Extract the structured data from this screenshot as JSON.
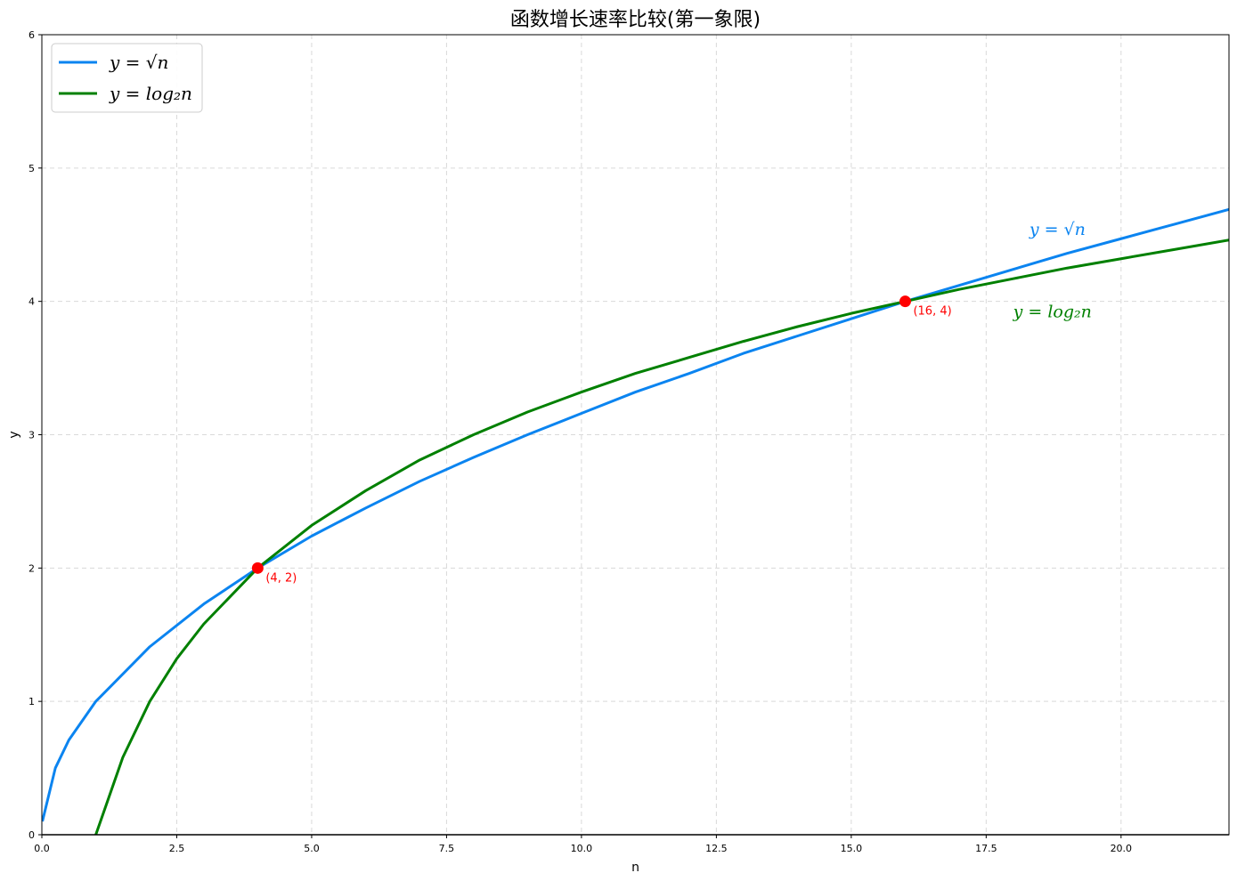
{
  "chart_data": {
    "type": "line",
    "title": "函数增长速率比较(第一象限)",
    "xlabel": "n",
    "ylabel": "y",
    "xlim": [
      0,
      22
    ],
    "ylim": [
      0,
      6
    ],
    "xticks": [
      0.0,
      2.5,
      5.0,
      7.5,
      10.0,
      12.5,
      15.0,
      17.5,
      20.0
    ],
    "xtick_labels": [
      "0.0",
      "2.5",
      "5.0",
      "7.5",
      "10.0",
      "12.5",
      "15.0",
      "17.5",
      "20.0"
    ],
    "yticks": [
      0,
      1,
      2,
      3,
      4,
      5,
      6
    ],
    "ytick_labels": [
      "0",
      "1",
      "2",
      "3",
      "4",
      "5",
      "6"
    ],
    "grid": true,
    "legend_position": "top-left",
    "series": [
      {
        "name": "y = √n",
        "legend_label": "y = √n",
        "curve_label": "y = √n",
        "color": "#0b84f0",
        "x": [
          0.01,
          0.25,
          0.5,
          1,
          2,
          3,
          4,
          5,
          6,
          7,
          8,
          9,
          10,
          11,
          12,
          13,
          14,
          15,
          16,
          17,
          18,
          19,
          20,
          21,
          22
        ],
        "y": [
          0.1,
          0.5,
          0.71,
          1.0,
          1.41,
          1.73,
          2.0,
          2.24,
          2.45,
          2.65,
          2.83,
          3.0,
          3.16,
          3.32,
          3.46,
          3.61,
          3.74,
          3.87,
          4.0,
          4.12,
          4.24,
          4.36,
          4.47,
          4.58,
          4.69
        ]
      },
      {
        "name": "y = log₂n",
        "legend_label": "y = log₂n",
        "curve_label": "y = log₂n",
        "color": "#008000",
        "x": [
          1,
          1.5,
          2,
          2.5,
          3,
          4,
          5,
          6,
          7,
          8,
          9,
          10,
          11,
          12,
          13,
          14,
          15,
          16,
          17,
          18,
          19,
          20,
          21,
          22
        ],
        "y": [
          0.0,
          0.58,
          1.0,
          1.32,
          1.58,
          2.0,
          2.32,
          2.58,
          2.81,
          3.0,
          3.17,
          3.32,
          3.46,
          3.58,
          3.7,
          3.81,
          3.91,
          4.0,
          4.09,
          4.17,
          4.25,
          4.32,
          4.39,
          4.46
        ]
      }
    ],
    "intersection_points": [
      {
        "x": 4,
        "y": 2,
        "label": "(4, 2)"
      },
      {
        "x": 16,
        "y": 4,
        "label": "(16, 4)"
      }
    ],
    "intersection_color": "#ff0000",
    "annotations": [
      {
        "text": "y = √n",
        "x": 18.3,
        "y": 4.5,
        "color": "#0b84f0"
      },
      {
        "text": "y = log₂n",
        "x": 18.0,
        "y": 3.88,
        "color": "#008000"
      }
    ]
  }
}
